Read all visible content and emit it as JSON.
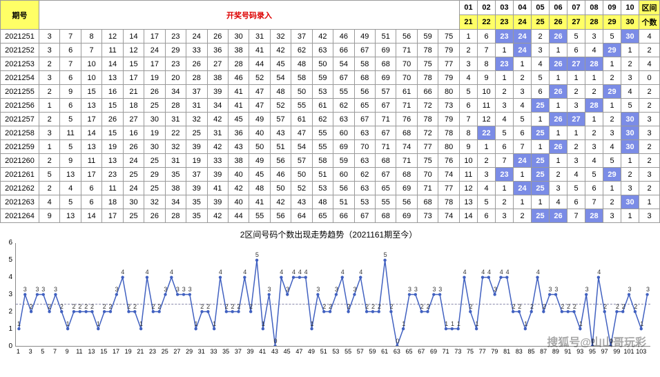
{
  "header": {
    "period_label": "期号",
    "main_label": "开奖号码录入",
    "range_label": "区间",
    "count_label": "个数",
    "top_nums": [
      "01",
      "02",
      "03",
      "04",
      "05",
      "06",
      "07",
      "08",
      "09",
      "10"
    ],
    "bot_nums": [
      "21",
      "22",
      "23",
      "24",
      "25",
      "26",
      "27",
      "28",
      "29",
      "30"
    ]
  },
  "rows": [
    {
      "p": "2021251",
      "n": [
        3,
        7,
        8,
        12,
        14,
        17,
        23,
        24,
        26,
        30,
        31,
        32,
        37,
        42,
        46,
        49,
        51,
        56,
        59,
        75
      ],
      "r": [
        {
          "v": 1
        },
        {
          "v": 6
        },
        {
          "v": 23,
          "h": 1
        },
        {
          "v": 24,
          "h": 1
        },
        {
          "v": 2
        },
        {
          "v": 26,
          "h": 1
        },
        {
          "v": 5
        },
        {
          "v": 3
        },
        {
          "v": 5
        },
        {
          "v": 30,
          "h": 1
        }
      ],
      "c": 4
    },
    {
      "p": "2021252",
      "n": [
        3,
        6,
        7,
        11,
        12,
        24,
        29,
        33,
        36,
        38,
        41,
        42,
        62,
        63,
        66,
        67,
        69,
        71,
        78,
        79
      ],
      "r": [
        {
          "v": 2
        },
        {
          "v": 7
        },
        {
          "v": 1
        },
        {
          "v": 24,
          "h": 1
        },
        {
          "v": 3
        },
        {
          "v": 1
        },
        {
          "v": 6
        },
        {
          "v": 4
        },
        {
          "v": 29,
          "h": 1
        },
        {
          "v": 1
        }
      ],
      "c": 2
    },
    {
      "p": "2021253",
      "n": [
        2,
        7,
        10,
        14,
        15,
        17,
        23,
        26,
        27,
        28,
        44,
        45,
        48,
        50,
        54,
        58,
        68,
        70,
        75,
        77
      ],
      "r": [
        {
          "v": 3
        },
        {
          "v": 8
        },
        {
          "v": 23,
          "h": 1
        },
        {
          "v": 1
        },
        {
          "v": 4
        },
        {
          "v": 26,
          "h": 1
        },
        {
          "v": 27,
          "h": 1
        },
        {
          "v": 28,
          "h": 1
        },
        {
          "v": 1
        },
        {
          "v": 2
        }
      ],
      "c": 4
    },
    {
      "p": "2021254",
      "n": [
        3,
        6,
        10,
        13,
        17,
        19,
        20,
        28,
        38,
        46,
        52,
        54,
        58,
        59,
        67,
        68,
        69,
        70,
        78,
        79
      ],
      "r": [
        {
          "v": 4
        },
        {
          "v": 9
        },
        {
          "v": 1
        },
        {
          "v": 2
        },
        {
          "v": 5
        },
        {
          "v": 1
        },
        {
          "v": 1
        },
        {
          "v": 1
        },
        {
          "v": 2
        },
        {
          "v": 3
        }
      ],
      "c": 0
    },
    {
      "p": "2021255",
      "n": [
        2,
        9,
        15,
        16,
        21,
        26,
        34,
        37,
        39,
        41,
        47,
        48,
        50,
        53,
        55,
        56,
        57,
        61,
        66,
        80
      ],
      "r": [
        {
          "v": 5
        },
        {
          "v": 10
        },
        {
          "v": 2
        },
        {
          "v": 3
        },
        {
          "v": 6
        },
        {
          "v": 26,
          "h": 1
        },
        {
          "v": 2
        },
        {
          "v": 2
        },
        {
          "v": 29,
          "h": 1
        },
        {
          "v": 4
        }
      ],
      "c": 2
    },
    {
      "p": "2021256",
      "n": [
        1,
        6,
        13,
        15,
        18,
        25,
        28,
        31,
        34,
        41,
        47,
        52,
        55,
        61,
        62,
        65,
        67,
        71,
        72,
        73
      ],
      "r": [
        {
          "v": 6
        },
        {
          "v": 11
        },
        {
          "v": 3
        },
        {
          "v": 4
        },
        {
          "v": 25,
          "h": 1
        },
        {
          "v": 1
        },
        {
          "v": 3
        },
        {
          "v": 28,
          "h": 1
        },
        {
          "v": 1
        },
        {
          "v": 5
        }
      ],
      "c": 2
    },
    {
      "p": "2021257",
      "n": [
        2,
        5,
        17,
        26,
        27,
        30,
        31,
        32,
        42,
        45,
        49,
        57,
        61,
        62,
        63,
        67,
        71,
        76,
        78,
        79
      ],
      "r": [
        {
          "v": 7
        },
        {
          "v": 12
        },
        {
          "v": 4
        },
        {
          "v": 5
        },
        {
          "v": 1
        },
        {
          "v": 26,
          "h": 1
        },
        {
          "v": 27,
          "h": 1
        },
        {
          "v": 1
        },
        {
          "v": 2
        },
        {
          "v": 30,
          "h": 1
        }
      ],
      "c": 3
    },
    {
      "p": "2021258",
      "n": [
        3,
        11,
        14,
        15,
        16,
        19,
        22,
        25,
        31,
        36,
        40,
        43,
        47,
        55,
        60,
        63,
        67,
        68,
        72,
        78
      ],
      "r": [
        {
          "v": 8
        },
        {
          "v": 22,
          "h": 1
        },
        {
          "v": 5
        },
        {
          "v": 6
        },
        {
          "v": 25,
          "h": 1
        },
        {
          "v": 1
        },
        {
          "v": 1
        },
        {
          "v": 2
        },
        {
          "v": 3
        },
        {
          "v": 30,
          "h": 1
        }
      ],
      "c": 3
    },
    {
      "p": "2021259",
      "n": [
        1,
        5,
        13,
        19,
        26,
        30,
        32,
        39,
        42,
        43,
        50,
        51,
        54,
        55,
        69,
        70,
        71,
        74,
        77,
        80
      ],
      "r": [
        {
          "v": 9
        },
        {
          "v": 1
        },
        {
          "v": 6
        },
        {
          "v": 7
        },
        {
          "v": 1
        },
        {
          "v": 26,
          "h": 1
        },
        {
          "v": 2
        },
        {
          "v": 3
        },
        {
          "v": 4
        },
        {
          "v": 30,
          "h": 1
        }
      ],
      "c": 2
    },
    {
      "p": "2021260",
      "n": [
        2,
        9,
        11,
        13,
        24,
        25,
        31,
        19,
        33,
        38,
        49,
        56,
        57,
        58,
        59,
        63,
        68,
        71,
        75,
        76
      ],
      "r": [
        {
          "v": 10
        },
        {
          "v": 2
        },
        {
          "v": 7
        },
        {
          "v": 24,
          "h": 1
        },
        {
          "v": 25,
          "h": 1
        },
        {
          "v": 1
        },
        {
          "v": 3
        },
        {
          "v": 4
        },
        {
          "v": 5
        },
        {
          "v": 1
        }
      ],
      "c": 2
    },
    {
      "p": "2021261",
      "n": [
        5,
        13,
        17,
        23,
        25,
        29,
        35,
        37,
        39,
        40,
        45,
        46,
        50,
        51,
        60,
        62,
        67,
        68,
        70,
        74
      ],
      "r": [
        {
          "v": 11
        },
        {
          "v": 3
        },
        {
          "v": 23,
          "h": 1
        },
        {
          "v": 1
        },
        {
          "v": 25,
          "h": 1
        },
        {
          "v": 2
        },
        {
          "v": 4
        },
        {
          "v": 5
        },
        {
          "v": 29,
          "h": 1
        },
        {
          "v": 2
        }
      ],
      "c": 3
    },
    {
      "p": "2021262",
      "n": [
        2,
        4,
        6,
        11,
        24,
        25,
        38,
        39,
        41,
        42,
        48,
        50,
        52,
        53,
        56,
        63,
        65,
        69,
        71,
        77
      ],
      "r": [
        {
          "v": 12
        },
        {
          "v": 4
        },
        {
          "v": 1
        },
        {
          "v": 24,
          "h": 1
        },
        {
          "v": 25,
          "h": 1
        },
        {
          "v": 3
        },
        {
          "v": 5
        },
        {
          "v": 6
        },
        {
          "v": 1
        },
        {
          "v": 3
        }
      ],
      "c": 2
    },
    {
      "p": "2021263",
      "n": [
        4,
        5,
        6,
        18,
        30,
        32,
        34,
        35,
        39,
        40,
        41,
        42,
        43,
        48,
        51,
        53,
        55,
        56,
        68,
        78
      ],
      "r": [
        {
          "v": 13
        },
        {
          "v": 5
        },
        {
          "v": 2
        },
        {
          "v": 1
        },
        {
          "v": 1
        },
        {
          "v": 4
        },
        {
          "v": 6
        },
        {
          "v": 7
        },
        {
          "v": 2
        },
        {
          "v": 30,
          "h": 1
        }
      ],
      "c": 1
    },
    {
      "p": "2021264",
      "n": [
        9,
        13,
        14,
        17,
        25,
        26,
        28,
        35,
        42,
        44,
        55,
        56,
        64,
        65,
        66,
        67,
        68,
        69,
        73,
        74
      ],
      "r": [
        {
          "v": 14
        },
        {
          "v": 6
        },
        {
          "v": 3
        },
        {
          "v": 2
        },
        {
          "v": 25,
          "h": 1
        },
        {
          "v": 26,
          "h": 1
        },
        {
          "v": 7
        },
        {
          "v": 28,
          "h": 1
        },
        {
          "v": 3
        },
        {
          "v": 1
        }
      ],
      "c": 3
    }
  ],
  "chart": {
    "title": "2区间号码个数出现走势趋势（2021161期至今）",
    "y_max": 6,
    "y_min": 0,
    "y_ticks": [
      0,
      1,
      2,
      3,
      4,
      5,
      6
    ],
    "dashed_y": 2.5,
    "colors": {
      "line": "#4060c0",
      "point": "#4060c0",
      "dashed": "#88a",
      "axis": "#888"
    },
    "series": [
      1,
      3,
      2,
      3,
      3,
      2,
      3,
      2,
      1,
      2,
      2,
      2,
      2,
      1,
      2,
      2,
      3,
      4,
      2,
      2,
      1,
      4,
      2,
      2,
      3,
      4,
      3,
      3,
      3,
      1,
      2,
      2,
      1,
      4,
      2,
      2,
      2,
      4,
      2,
      5,
      1,
      3,
      0,
      4,
      3,
      4,
      4,
      4,
      1,
      3,
      2,
      2,
      3,
      4,
      2,
      3,
      4,
      2,
      2,
      2,
      5,
      2,
      0,
      1,
      3,
      3,
      2,
      2,
      3,
      3,
      1,
      1,
      1,
      4,
      2,
      1,
      4,
      4,
      3,
      4,
      4,
      2,
      2,
      1,
      2,
      4,
      2,
      3,
      3,
      2,
      2,
      2,
      1,
      3,
      0,
      4,
      2,
      0,
      2,
      2,
      3,
      2,
      1,
      3
    ],
    "x_ticks": [
      1,
      3,
      5,
      7,
      9,
      11,
      13,
      15,
      17,
      19,
      21,
      23,
      25,
      27,
      29,
      31,
      33,
      35,
      37,
      39,
      41,
      43,
      45,
      47,
      49,
      51,
      53,
      55,
      57,
      59,
      61,
      63,
      65,
      67,
      69,
      71,
      73,
      75,
      77,
      79,
      81,
      83,
      85,
      87,
      89,
      91,
      93,
      95,
      97,
      99,
      101,
      103
    ]
  },
  "watermark": "搜狐号@山山哥玩彩"
}
